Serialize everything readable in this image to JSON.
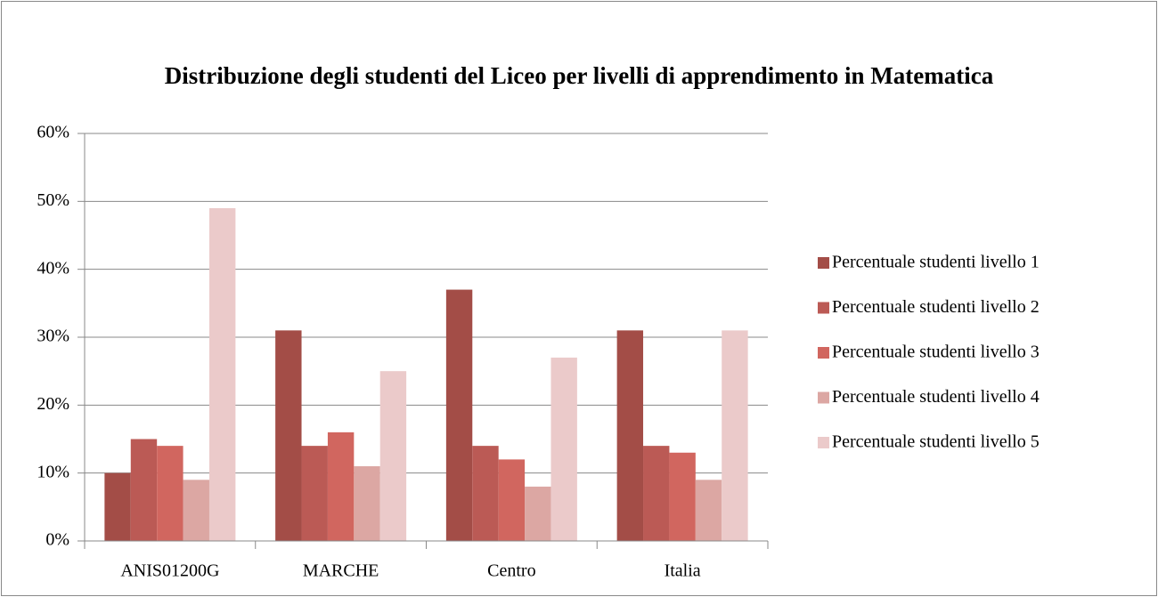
{
  "chart_data": {
    "type": "bar",
    "title": "Distribuzione degli studenti del Liceo per livelli di apprendimento in Matematica",
    "categories": [
      "ANIS01200G",
      "MARCHE",
      "Centro",
      "Italia"
    ],
    "series": [
      {
        "name": "Percentuale studenti livello 1",
        "color": "#a34d47",
        "values": [
          10,
          31,
          37,
          31
        ]
      },
      {
        "name": "Percentuale studenti livello 2",
        "color": "#bb5a55",
        "values": [
          15,
          14,
          14,
          14
        ]
      },
      {
        "name": "Percentuale studenti livello 3",
        "color": "#d1665f",
        "values": [
          14,
          16,
          12,
          13
        ]
      },
      {
        "name": "Percentuale studenti livello 4",
        "color": "#dca7a3",
        "values": [
          9,
          11,
          8,
          9
        ]
      },
      {
        "name": "Percentuale studenti livello 5",
        "color": "#ebcaca",
        "values": [
          49,
          25,
          27,
          31
        ]
      }
    ],
    "ylim": [
      0,
      60
    ],
    "yticks": [
      {
        "value": 0,
        "label": "0%"
      },
      {
        "value": 10,
        "label": "10%"
      },
      {
        "value": 20,
        "label": "20%"
      },
      {
        "value": 30,
        "label": "30%"
      },
      {
        "value": 40,
        "label": "40%"
      },
      {
        "value": 50,
        "label": "50%"
      },
      {
        "value": 60,
        "label": "60%"
      }
    ],
    "grid": true,
    "legend": "right"
  }
}
